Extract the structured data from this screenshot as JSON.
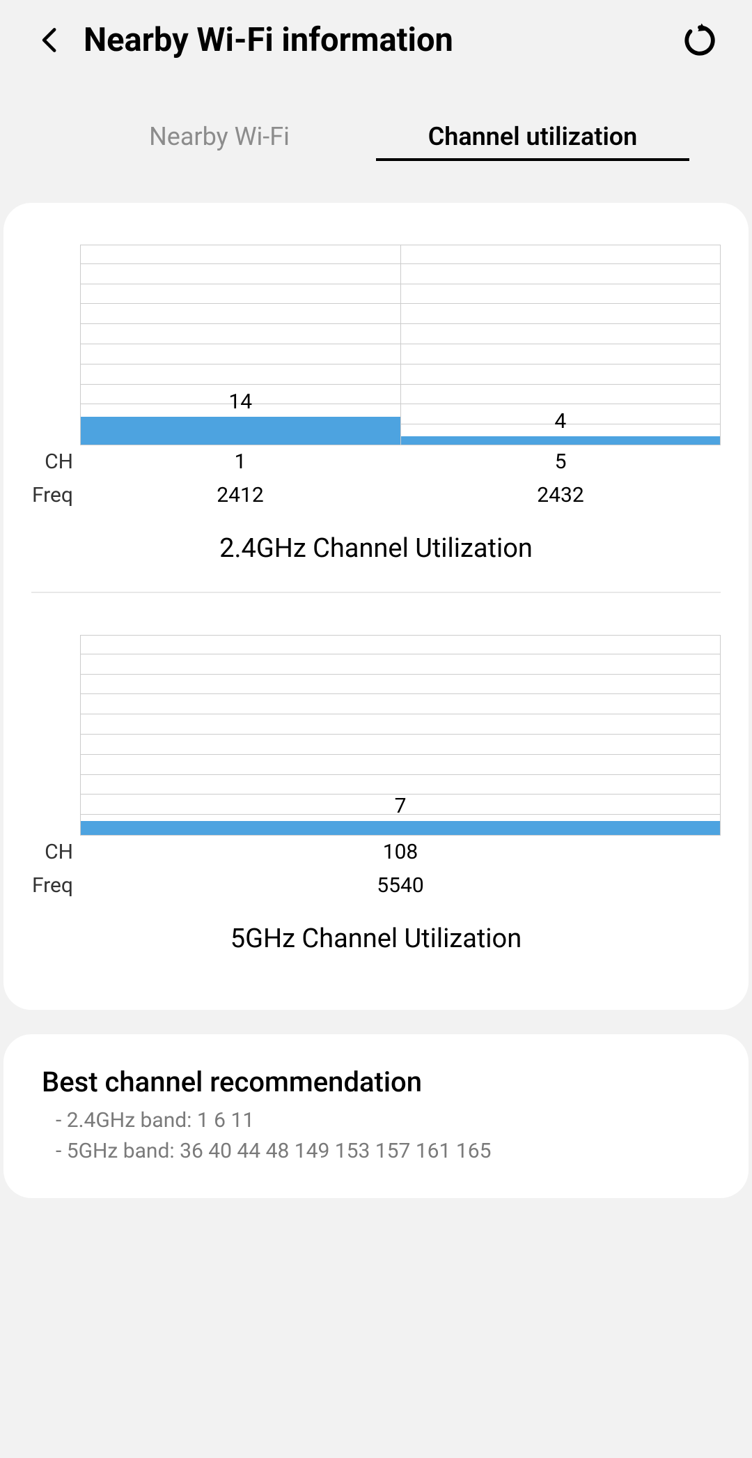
{
  "header": {
    "title": "Nearby Wi-Fi information"
  },
  "tabs": {
    "nearby": "Nearby Wi-Fi",
    "utilization": "Channel utilization"
  },
  "chart_style": {
    "bar_color": "#4da3e0",
    "grid_color": "#cccccc",
    "background_color": "#ffffff",
    "gridline_count": 10,
    "ymax": 100
  },
  "axis_row_labels": {
    "ch": "CH",
    "freq": "Freq"
  },
  "chart_24": {
    "title": "2.4GHz Channel Utilization",
    "bars": [
      {
        "value": 14,
        "ch": "1",
        "freq": "2412"
      },
      {
        "value": 4,
        "ch": "5",
        "freq": "2432"
      }
    ]
  },
  "chart_5": {
    "title": "5GHz Channel Utilization",
    "bars": [
      {
        "value": 7,
        "ch": "108",
        "freq": "5540"
      }
    ]
  },
  "recommendation": {
    "title": "Best channel recommendation",
    "line1": "- 2.4GHz band: 1 6 11",
    "line2": "- 5GHz band: 36 40 44 48 149 153 157 161 165"
  }
}
